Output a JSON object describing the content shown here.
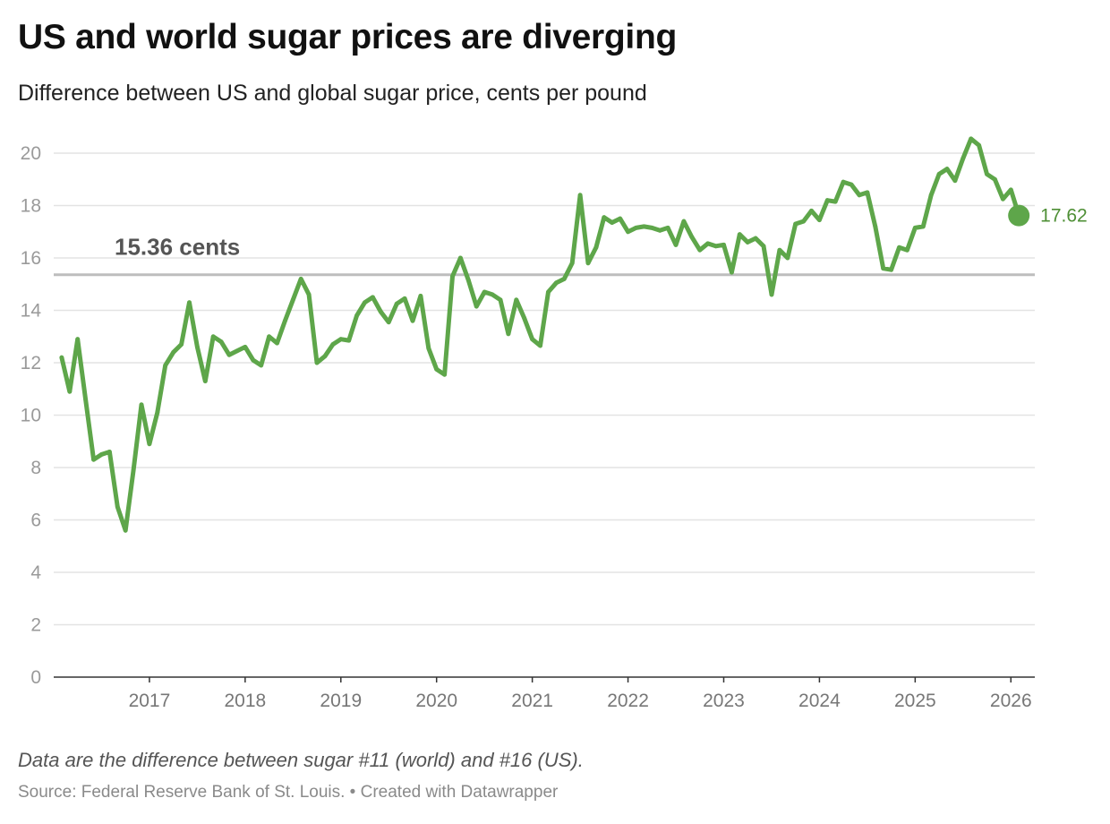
{
  "title": "US and world sugar prices are diverging",
  "subtitle": "Difference between US and global sugar price, cents per pound",
  "note": "Data are the difference between sugar #11 (world) and #16 (US).",
  "source": "Source: Federal Reserve Bank of St. Louis. • Created with Datawrapper",
  "colors": {
    "line": "#5ea64a",
    "end_label": "#4e8f35",
    "reference_line": "#bdbdbd",
    "grid": "#e3e3e3"
  },
  "chart_data": {
    "type": "line",
    "xlabel": "",
    "ylabel": "",
    "ylim": [
      0,
      20
    ],
    "xlim": [
      2016.0,
      2026.25
    ],
    "yticks": [
      0,
      2,
      4,
      6,
      8,
      10,
      12,
      14,
      16,
      18,
      20
    ],
    "xticks": [
      "2017",
      "2018",
      "2019",
      "2020",
      "2021",
      "2022",
      "2023",
      "2024",
      "2025",
      "2026"
    ],
    "grid": true,
    "reference_line": {
      "value": 15.36,
      "label": "15.36 cents"
    },
    "end_label": "17.62",
    "series": [
      {
        "x": [
          "2016-02",
          "2016-03",
          "2016-04",
          "2016-05",
          "2016-06",
          "2016-07",
          "2016-08",
          "2016-09",
          "2016-10",
          "2016-11",
          "2016-12",
          "2017-01",
          "2017-02",
          "2017-03",
          "2017-04",
          "2017-05",
          "2017-06",
          "2017-07",
          "2017-08",
          "2017-09",
          "2017-10",
          "2017-11",
          "2017-12",
          "2018-01",
          "2018-02",
          "2018-03",
          "2018-04",
          "2018-05",
          "2018-06",
          "2018-07",
          "2018-08",
          "2018-09",
          "2018-10",
          "2018-11",
          "2018-12",
          "2019-01",
          "2019-02",
          "2019-03",
          "2019-04",
          "2019-05",
          "2019-06",
          "2019-07",
          "2019-08",
          "2019-09",
          "2019-10",
          "2019-11",
          "2019-12",
          "2020-01",
          "2020-02",
          "2020-03",
          "2020-04",
          "2020-05",
          "2020-06",
          "2020-07",
          "2020-08",
          "2020-09",
          "2020-10",
          "2020-11",
          "2020-12",
          "2021-01",
          "2021-02",
          "2021-03",
          "2021-04",
          "2021-05",
          "2021-06",
          "2021-07",
          "2021-08",
          "2021-09",
          "2021-10",
          "2021-11",
          "2021-12",
          "2022-01",
          "2022-02",
          "2022-03",
          "2022-04",
          "2022-05",
          "2022-06",
          "2022-07",
          "2022-08",
          "2022-09",
          "2022-10",
          "2022-11",
          "2022-12",
          "2023-01",
          "2023-02",
          "2023-03",
          "2023-04",
          "2023-05",
          "2023-06",
          "2023-07",
          "2023-08",
          "2023-09",
          "2023-10",
          "2023-11",
          "2023-12",
          "2024-01",
          "2024-02",
          "2024-03",
          "2024-04",
          "2024-05",
          "2024-06",
          "2024-07",
          "2024-08",
          "2024-09",
          "2024-10",
          "2024-11",
          "2024-12",
          "2025-01",
          "2025-02",
          "2025-03",
          "2025-04",
          "2025-05",
          "2025-06",
          "2025-07",
          "2025-08",
          "2025-09",
          "2025-10",
          "2025-11",
          "2025-12",
          "2026-01",
          "2026-02"
        ],
        "values": [
          12.2,
          10.9,
          12.9,
          10.6,
          8.3,
          8.5,
          8.6,
          6.5,
          5.6,
          7.9,
          10.4,
          8.9,
          10.1,
          11.9,
          12.4,
          12.7,
          14.3,
          12.6,
          11.3,
          13.0,
          12.8,
          12.3,
          12.45,
          12.6,
          12.1,
          11.9,
          13.0,
          12.75,
          13.6,
          14.4,
          15.2,
          14.6,
          12.0,
          12.25,
          12.7,
          12.9,
          12.85,
          13.8,
          14.3,
          14.5,
          13.95,
          13.55,
          14.25,
          14.45,
          13.6,
          14.55,
          12.55,
          11.75,
          11.55,
          15.3,
          16.0,
          15.15,
          14.15,
          14.7,
          14.6,
          14.4,
          13.1,
          14.4,
          13.7,
          12.9,
          12.65,
          14.7,
          15.05,
          15.2,
          15.8,
          18.4,
          15.8,
          16.4,
          17.55,
          17.35,
          17.5,
          17.0,
          17.15,
          17.2,
          17.15,
          17.05,
          17.15,
          16.5,
          17.4,
          16.8,
          16.3,
          16.55,
          16.45,
          16.5,
          15.45,
          16.9,
          16.6,
          16.75,
          16.45,
          14.6,
          16.3,
          16.0,
          17.3,
          17.4,
          17.8,
          17.45,
          18.2,
          18.15,
          18.9,
          18.8,
          18.4,
          18.5,
          17.2,
          15.6,
          15.55,
          16.4,
          16.3,
          17.15,
          17.2,
          18.4,
          19.2,
          19.4,
          18.95,
          19.8,
          20.55,
          20.3,
          19.2,
          19.0,
          18.25,
          18.6,
          17.62
        ]
      }
    ]
  }
}
